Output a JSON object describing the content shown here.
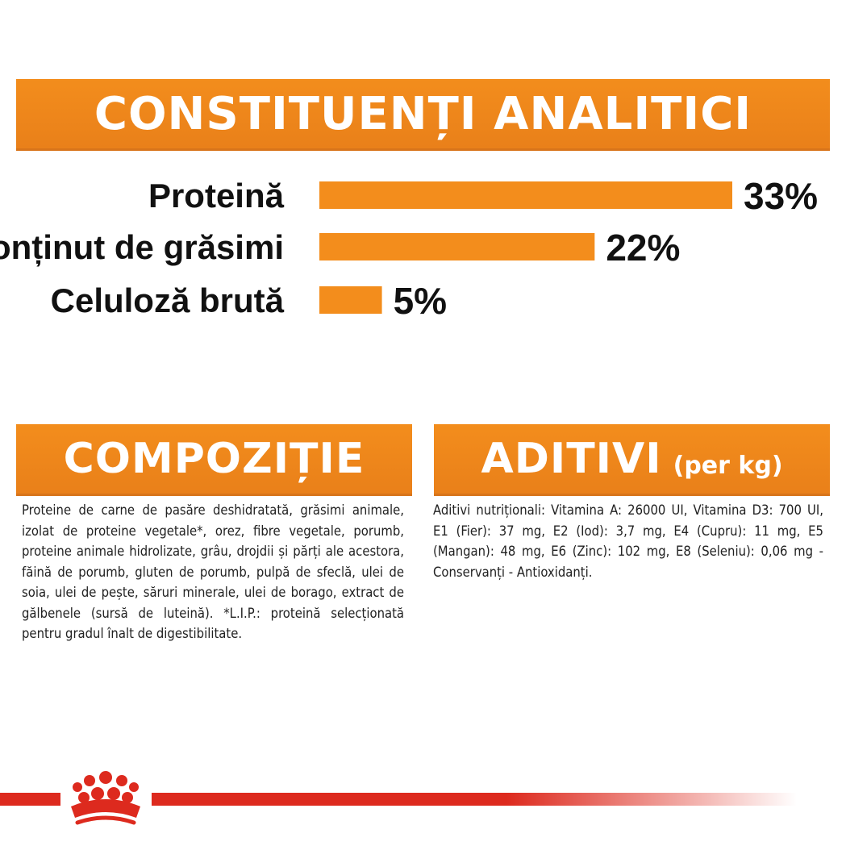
{
  "header": {
    "analytic_title": "CONSTITUENȚI ANALITICI"
  },
  "chart_data": {
    "type": "bar",
    "orientation": "horizontal",
    "categories": [
      "Proteină",
      "Conținut de grăsimi",
      "Celuloză brută"
    ],
    "values": [
      33,
      22,
      5
    ],
    "value_labels": [
      "33%",
      "22%",
      "5%"
    ],
    "unit": "%",
    "xlim": [
      0,
      33
    ],
    "grid": false,
    "legend": "none",
    "colors": {
      "bar": "#f38d1c"
    }
  },
  "composition": {
    "title": "COMPOZIȚIE",
    "text": "Proteine de carne de pasăre deshidratată, grăsimi animale, izolat de proteine vegetale*, orez, fibre vegetale, porumb, proteine animale hidrolizate, grâu, drojdii și părți ale acestora, făină de porumb, gluten de porumb, pulpă de sfeclă, ulei de soia, ulei de pește, săruri minerale, ulei de borago, extract de gălbenele (sursă de luteină). *L.I.P.: proteină selecționată pentru gradul înalt de digestibilitate."
  },
  "additives": {
    "title": "ADITIVI",
    "subtitle": "(per kg)",
    "text": "Aditivi nutriționali: Vitamina A: 26000 UI, Vitamina D3: 700 UI, E1 (Fier): 37 mg, E2 (Iod): 3,7 mg, E4 (Cupru): 11 mg, E5 (Mangan): 48 mg, E6 (Zinc): 102 mg, E8 (Seleniu): 0,06 mg - Conservanți - Antioxidanți."
  },
  "colors": {
    "accent": "#f38d1c",
    "brand_red": "#dd2a1e",
    "text": "#111111"
  },
  "logo": {
    "icon": "crown-logo-icon"
  }
}
